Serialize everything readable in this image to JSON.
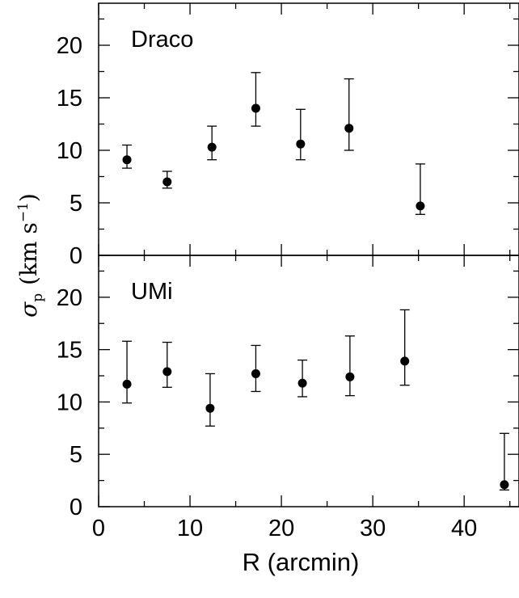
{
  "chart_data": [
    {
      "type": "scatter",
      "title": "Draco",
      "xlim": [
        0,
        46
      ],
      "ylim": [
        0,
        24
      ],
      "xticks": [
        0,
        10,
        20,
        30,
        40
      ],
      "yticks": [
        0,
        5,
        10,
        15,
        20
      ],
      "show_x_ticklabels": false,
      "grid": false,
      "points": [
        {
          "x": 3.1,
          "y": 9.1,
          "ylow": 8.3,
          "yhigh": 10.5
        },
        {
          "x": 7.5,
          "y": 7.0,
          "ylow": 6.4,
          "yhigh": 8.0
        },
        {
          "x": 12.4,
          "y": 10.3,
          "ylow": 9.1,
          "yhigh": 12.3
        },
        {
          "x": 17.2,
          "y": 14.0,
          "ylow": 12.3,
          "yhigh": 17.4
        },
        {
          "x": 22.1,
          "y": 10.6,
          "ylow": 9.1,
          "yhigh": 13.9
        },
        {
          "x": 27.4,
          "y": 12.1,
          "ylow": 10.0,
          "yhigh": 16.8
        },
        {
          "x": 35.2,
          "y": 4.7,
          "ylow": 3.9,
          "yhigh": 8.7
        }
      ]
    },
    {
      "type": "scatter",
      "title": "UMi",
      "xlim": [
        0,
        46
      ],
      "ylim": [
        0,
        24
      ],
      "xticks": [
        0,
        10,
        20,
        30,
        40
      ],
      "yticks": [
        0,
        5,
        10,
        15,
        20
      ],
      "show_x_ticklabels": true,
      "grid": false,
      "points": [
        {
          "x": 3.1,
          "y": 11.7,
          "ylow": 9.9,
          "yhigh": 15.8
        },
        {
          "x": 7.5,
          "y": 12.9,
          "ylow": 11.4,
          "yhigh": 15.7
        },
        {
          "x": 12.2,
          "y": 9.4,
          "ylow": 7.7,
          "yhigh": 12.7
        },
        {
          "x": 17.2,
          "y": 12.7,
          "ylow": 11.0,
          "yhigh": 15.4
        },
        {
          "x": 22.3,
          "y": 11.8,
          "ylow": 10.5,
          "yhigh": 14.0
        },
        {
          "x": 27.5,
          "y": 12.4,
          "ylow": 10.6,
          "yhigh": 16.3
        },
        {
          "x": 33.5,
          "y": 13.9,
          "ylow": 11.6,
          "yhigh": 18.8
        },
        {
          "x": 44.4,
          "y": 2.1,
          "ylow": 1.6,
          "yhigh": 7.0
        }
      ]
    }
  ],
  "axes": {
    "xlabel": "R (arcmin)",
    "ylabel_symbol": "σ",
    "ylabel_subscript": "p",
    "ylabel_units_prefix": "(km s",
    "ylabel_units_exponent": "−1",
    "ylabel_units_suffix": ")"
  }
}
